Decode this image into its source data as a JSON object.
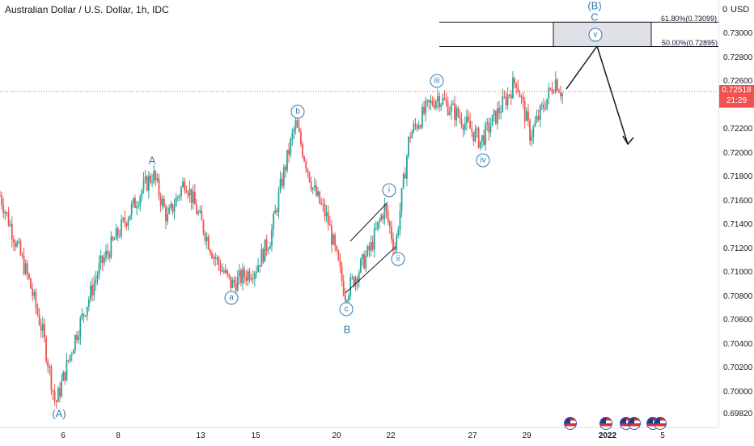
{
  "chart_title": "Australian Dollar / U.S. Dollar, 1h, IDC",
  "currency": "USD",
  "zero_label": "0",
  "last_price": "0.72518",
  "countdown": "21:29",
  "colors": {
    "up": "#26a69a",
    "down": "#ef5350",
    "wave": "#2e7bb6",
    "price_line": "#ef5350"
  },
  "price_ticks": [
    "0.73000",
    "0.72800",
    "0.72600",
    "0.72200",
    "0.72000",
    "0.71800",
    "0.71600",
    "0.71400",
    "0.71200",
    "0.71000",
    "0.70800",
    "0.70600",
    "0.70400",
    "0.70200",
    "0.70000",
    "0.69820"
  ],
  "time_ticks": [
    "6",
    "8",
    "13",
    "15",
    "20",
    "22",
    "27",
    "29",
    "2022",
    "5"
  ],
  "fib_levels": [
    {
      "label": "61.80%(0.73099)",
      "price": 0.73099
    },
    {
      "label": "50.00%(0.72895)",
      "price": 0.72895
    }
  ],
  "wave_labels": {
    "big_a": "(A)",
    "a": "A",
    "b": "B",
    "c_big": "C",
    "b_paren": "(B)",
    "sub_a": "a",
    "sub_b": "b",
    "sub_c": "c",
    "i": "i",
    "ii": "ii",
    "iii": "iii",
    "iv": "iv",
    "v": "v"
  },
  "chart_data": {
    "type": "candlestick",
    "title": "Australian Dollar / U.S. Dollar, 1h, IDC",
    "ylabel": "USD",
    "ylim": [
      0.6975,
      0.7325
    ],
    "x_range_days": [
      "Dec 3 2021",
      "Jan 6 2022"
    ],
    "path_points": [
      {
        "t": 0,
        "p": 0.7165
      },
      {
        "t": 0.04,
        "p": 0.7095
      },
      {
        "t": 0.06,
        "p": 0.705
      },
      {
        "t": 0.078,
        "p": 0.699
      },
      {
        "t": 0.105,
        "p": 0.7045
      },
      {
        "t": 0.14,
        "p": 0.7105
      },
      {
        "t": 0.2,
        "p": 0.717
      },
      {
        "t": 0.215,
        "p": 0.7183
      },
      {
        "t": 0.235,
        "p": 0.7145
      },
      {
        "t": 0.26,
        "p": 0.7178
      },
      {
        "t": 0.3,
        "p": 0.7115
      },
      {
        "t": 0.325,
        "p": 0.709
      },
      {
        "t": 0.36,
        "p": 0.7105
      },
      {
        "t": 0.38,
        "p": 0.713
      },
      {
        "t": 0.395,
        "p": 0.7175
      },
      {
        "t": 0.415,
        "p": 0.7225
      },
      {
        "t": 0.44,
        "p": 0.717
      },
      {
        "t": 0.46,
        "p": 0.7145
      },
      {
        "t": 0.485,
        "p": 0.7082
      },
      {
        "t": 0.52,
        "p": 0.712
      },
      {
        "t": 0.54,
        "p": 0.7155
      },
      {
        "t": 0.555,
        "p": 0.712
      },
      {
        "t": 0.575,
        "p": 0.7215
      },
      {
        "t": 0.6,
        "p": 0.7238
      },
      {
        "t": 0.615,
        "p": 0.7248
      },
      {
        "t": 0.65,
        "p": 0.7228
      },
      {
        "t": 0.675,
        "p": 0.721
      },
      {
        "t": 0.71,
        "p": 0.7245
      },
      {
        "t": 0.725,
        "p": 0.7262
      },
      {
        "t": 0.745,
        "p": 0.7215
      },
      {
        "t": 0.76,
        "p": 0.7235
      },
      {
        "t": 0.78,
        "p": 0.7262
      },
      {
        "t": 0.79,
        "p": 0.725
      }
    ],
    "last_price": 0.72518,
    "annotations": [
      "(A)",
      "A",
      "a",
      "b",
      "c",
      "B",
      "i",
      "ii",
      "iii",
      "iv",
      "v",
      "C",
      "(B)",
      "61.80%(0.73099)",
      "50.00%(0.72895)"
    ],
    "grid": false
  }
}
